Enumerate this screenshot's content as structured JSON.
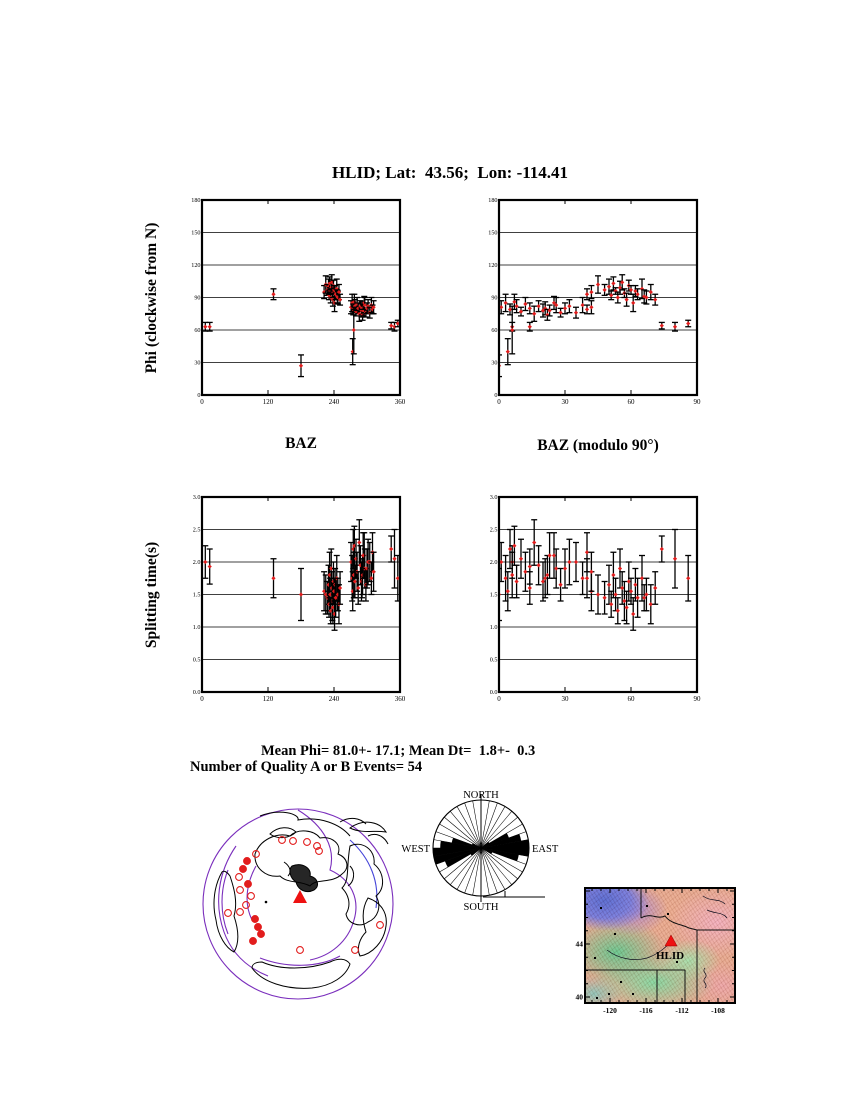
{
  "page": {
    "title": "HLID; Lat:  43.56;  Lon: -114.41"
  },
  "axis_labels": {
    "phi": "Phi (clockwise from N)",
    "dt": "Splitting time(s)",
    "baz": "BAZ",
    "baz_mod": "BAZ (modulo 90°)"
  },
  "summary": {
    "line1": "Mean Phi= 81.0+- 17.1; Mean Dt=  1.8+-  0.3",
    "line2": "Number of Quality A or B Events= 54"
  },
  "colors": {
    "marker": "#e21d1d",
    "bar": "#000000",
    "plate_boundary": "#7a2ebc",
    "plate_boundary_alt": "#4545d8",
    "station": "#ee1111"
  },
  "chart_data": {
    "type": "scatter",
    "title": "Shear-wave splitting measurements at station HLID",
    "n_events": 54,
    "mean_phi": 81.0,
    "mean_phi_err": 17.1,
    "mean_dt": 1.8,
    "mean_dt_err": 0.3,
    "events": {
      "columns": [
        "baz",
        "phi",
        "phi_err",
        "dt",
        "dt_err"
      ],
      "rows": [
        [
          6,
          63,
          4,
          2.0,
          0.25
        ],
        [
          14,
          63,
          4,
          1.93,
          0.27
        ],
        [
          130,
          93,
          5,
          1.75,
          0.3
        ],
        [
          180,
          27,
          10,
          1.5,
          0.4
        ],
        [
          222,
          95,
          6,
          1.55,
          0.3
        ],
        [
          225,
          102,
          8,
          1.5,
          0.3
        ],
        [
          228,
          97,
          5,
          1.45,
          0.25
        ],
        [
          230,
          100,
          7,
          1.65,
          0.3
        ],
        [
          231,
          92,
          4,
          1.35,
          0.2
        ],
        [
          232,
          103,
          6,
          1.8,
          0.35
        ],
        [
          233,
          96,
          3,
          1.5,
          0.25
        ],
        [
          234,
          90,
          5,
          1.25,
          0.2
        ],
        [
          235,
          99,
          6,
          1.9,
          0.3
        ],
        [
          236,
          104,
          7,
          1.6,
          0.25
        ],
        [
          237,
          94,
          4,
          1.4,
          0.3
        ],
        [
          238,
          88,
          6,
          1.3,
          0.25
        ],
        [
          239,
          101,
          5,
          1.7,
          0.3
        ],
        [
          240,
          97,
          4,
          1.55,
          0.2
        ],
        [
          241,
          85,
          8,
          1.2,
          0.25
        ],
        [
          242,
          96,
          5,
          1.65,
          0.25
        ],
        [
          243,
          93,
          5,
          1.45,
          0.3
        ],
        [
          245,
          98,
          9,
          1.75,
          0.35
        ],
        [
          246,
          91,
          6,
          1.45,
          0.2
        ],
        [
          247,
          90,
          6,
          1.5,
          0.25
        ],
        [
          249,
          95,
          7,
          1.35,
          0.3
        ],
        [
          251,
          88,
          5,
          1.6,
          0.25
        ],
        [
          271,
          81,
          6,
          2.0,
          0.3
        ],
        [
          273,
          85,
          8,
          1.75,
          0.35
        ],
        [
          274,
          40,
          12,
          1.55,
          0.3
        ],
        [
          275,
          79,
          5,
          2.2,
          0.3
        ],
        [
          276,
          60,
          22,
          1.8,
          0.35
        ],
        [
          277,
          86,
          7,
          2.25,
          0.3
        ],
        [
          278,
          82,
          6,
          1.7,
          0.25
        ],
        [
          280,
          77,
          4,
          2.05,
          0.3
        ],
        [
          282,
          84,
          6,
          1.85,
          0.3
        ],
        [
          284,
          80,
          5,
          1.6,
          0.25
        ],
        [
          286,
          75,
          7,
          2.3,
          0.35
        ],
        [
          288,
          82,
          5,
          1.95,
          0.3
        ],
        [
          290,
          78,
          6,
          1.7,
          0.3
        ],
        [
          291,
          80,
          6,
          1.75,
          0.3
        ],
        [
          292,
          74,
          5,
          1.8,
          0.3
        ],
        [
          293,
          78,
          5,
          2.1,
          0.35
        ],
        [
          295,
          85,
          6,
          2.1,
          0.35
        ],
        [
          296,
          83,
          7,
          1.9,
          0.3
        ],
        [
          298,
          76,
          4,
          1.65,
          0.25
        ],
        [
          300,
          80,
          5,
          1.9,
          0.3
        ],
        [
          302,
          82,
          6,
          2.0,
          0.35
        ],
        [
          305,
          76,
          5,
          2.0,
          0.3
        ],
        [
          308,
          83,
          7,
          1.75,
          0.25
        ],
        [
          310,
          79,
          4,
          2.15,
          0.3
        ],
        [
          312,
          81,
          6,
          1.85,
          0.3
        ],
        [
          344,
          64,
          3,
          2.2,
          0.2
        ],
        [
          350,
          63,
          4,
          2.05,
          0.45
        ],
        [
          356,
          66,
          3,
          1.75,
          0.35
        ]
      ]
    },
    "charts": [
      {
        "id": "phi-baz",
        "x_field": "baz",
        "y_field": "phi",
        "err_field": "phi_err",
        "xlabel": "BAZ",
        "ylabel": "Phi (clockwise from N)",
        "xlim": [
          0,
          360
        ],
        "xticks": [
          0,
          120,
          240,
          360
        ],
        "xtick_labels": [
          "0",
          "120",
          "240",
          "360"
        ],
        "ylim": [
          0,
          180
        ],
        "yticks": [
          0,
          30,
          60,
          90,
          120,
          150,
          180
        ],
        "ytick_labels": [
          "0",
          "30",
          "60",
          "90",
          "120",
          "150",
          "180"
        ],
        "grid": true
      },
      {
        "id": "phi-mod",
        "x_field": "baz_mod90",
        "y_field": "phi",
        "err_field": "phi_err",
        "xlabel": "BAZ (modulo 90°)",
        "ylabel": "Phi (clockwise from N)",
        "xlim": [
          0,
          90
        ],
        "xticks": [
          0,
          30,
          60,
          90
        ],
        "xtick_labels": [
          "0",
          "30",
          "60",
          "90"
        ],
        "ylim": [
          0,
          180
        ],
        "yticks": [
          0,
          30,
          60,
          90,
          120,
          150,
          180
        ],
        "ytick_labels": [
          "0",
          "30",
          "60",
          "90",
          "120",
          "150",
          "180"
        ],
        "grid": true
      },
      {
        "id": "dt-baz",
        "x_field": "baz",
        "y_field": "dt",
        "err_field": "dt_err",
        "xlabel": "BAZ",
        "ylabel": "Splitting time(s)",
        "xlim": [
          0,
          360
        ],
        "xticks": [
          0,
          120,
          240,
          360
        ],
        "xtick_labels": [
          "0",
          "120",
          "240",
          "360"
        ],
        "ylim": [
          0,
          3
        ],
        "yticks": [
          0,
          0.5,
          1,
          1.5,
          2,
          2.5,
          3
        ],
        "ytick_labels": [
          "0.0",
          "0.5",
          "1.0",
          "1.5",
          "2.0",
          "2.5",
          "3.0"
        ],
        "grid": true
      },
      {
        "id": "dt-mod",
        "x_field": "baz_mod90",
        "y_field": "dt",
        "err_field": "dt_err",
        "xlabel": "BAZ (modulo 90°)",
        "ylabel": "Splitting time(s)",
        "xlim": [
          0,
          90
        ],
        "xticks": [
          0,
          30,
          60,
          90
        ],
        "xtick_labels": [
          "0",
          "30",
          "60",
          "90"
        ],
        "ylim": [
          0,
          3
        ],
        "yticks": [
          0,
          0.5,
          1,
          1.5,
          2,
          2.5,
          3
        ],
        "ytick_labels": [
          "0.0",
          "0.5",
          "1.0",
          "1.5",
          "2.0",
          "2.5",
          "3.0"
        ],
        "grid": true
      }
    ]
  },
  "rose": {
    "labels": {
      "north": "NORTH",
      "south": "SOUTH",
      "east": "EAST",
      "west": "WEST"
    },
    "sector_width_deg": 10,
    "filled_sectors": [
      {
        "az": 55,
        "r": 0.2
      },
      {
        "az": 65,
        "r": 0.62
      },
      {
        "az": 75,
        "r": 0.85
      },
      {
        "az": 85,
        "r": 1.0
      },
      {
        "az": 95,
        "r": 1.0
      },
      {
        "az": 105,
        "r": 0.8
      },
      {
        "az": 115,
        "r": 0.25
      },
      {
        "az": 235,
        "r": 0.25
      },
      {
        "az": 245,
        "r": 0.8
      },
      {
        "az": 255,
        "r": 1.0
      },
      {
        "az": 265,
        "r": 1.0
      },
      {
        "az": 275,
        "r": 0.85
      },
      {
        "az": 285,
        "r": 0.62
      },
      {
        "az": 295,
        "r": 0.2
      }
    ]
  },
  "globe": {
    "station_marker": "red-triangle",
    "event_markers": [
      [
        82,
        34
      ],
      [
        93,
        35
      ],
      [
        107,
        36
      ],
      [
        117,
        40
      ],
      [
        119,
        45
      ],
      [
        56,
        48
      ],
      [
        47,
        55
      ],
      [
        43,
        63
      ],
      [
        39,
        71
      ],
      [
        48,
        78
      ],
      [
        40,
        84
      ],
      [
        51,
        90
      ],
      [
        46,
        99
      ],
      [
        28,
        107
      ],
      [
        55,
        113
      ],
      [
        58,
        121
      ],
      [
        61,
        128
      ],
      [
        53,
        135
      ],
      [
        100,
        144
      ],
      [
        155,
        144
      ],
      [
        180,
        119
      ],
      [
        40,
        106
      ]
    ],
    "filled_marker_indexes": [
      6,
      7,
      9,
      14,
      15,
      16,
      17
    ]
  },
  "map": {
    "station_label": "HLID",
    "lat_ticks": [
      {
        "label": "44",
        "y": 64
      },
      {
        "label": "40",
        "y": 117
      }
    ],
    "lon_ticks": [
      {
        "label": "-120",
        "x": 33
      },
      {
        "label": "-116",
        "x": 69
      },
      {
        "label": "-112",
        "x": 105
      },
      {
        "label": "-108",
        "x": 141
      }
    ]
  }
}
